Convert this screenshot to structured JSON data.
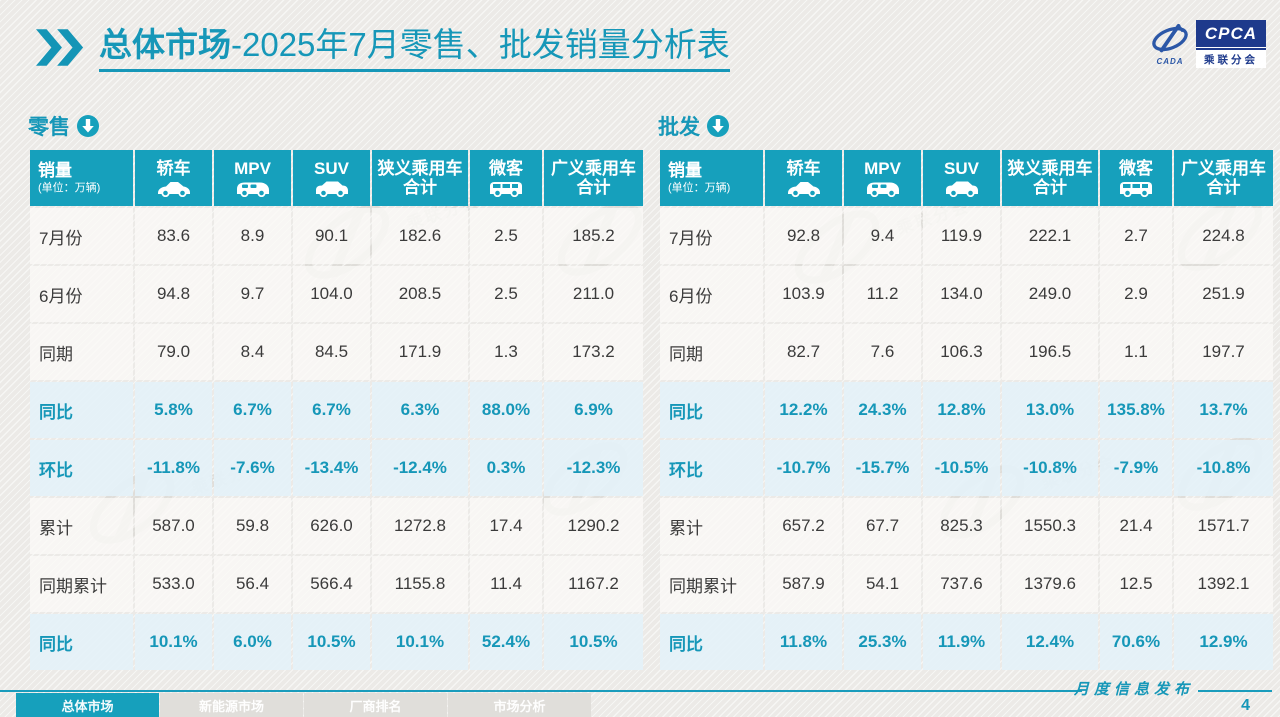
{
  "header": {
    "title_bold": "总体市场",
    "title_rest": "-2025年7月零售、批发销量分析表"
  },
  "logo": {
    "emblem_text": "CADA",
    "acronym": "CPCA",
    "name_cn": "乘联分会"
  },
  "watermark_label": "乘联分会",
  "colors": {
    "teal": "#16A0BC",
    "teal_text": "#1697B8",
    "navy": "#1E3A8C",
    "pct_row_bg": "#E4F1F8"
  },
  "tables": [
    {
      "title": "零售",
      "unit_label": "销量",
      "unit_sub": "(单位：万辆)",
      "columns": [
        {
          "label": "轿车",
          "icon": "sedan"
        },
        {
          "label": "MPV",
          "icon": "mpv"
        },
        {
          "label": "SUV",
          "icon": "suv"
        },
        {
          "label": "狭义乘用车",
          "label2": "合计",
          "icon": null
        },
        {
          "label": "微客",
          "icon": "van"
        },
        {
          "label": "广义乘用车",
          "label2": "合计",
          "icon": null
        }
      ],
      "rows": [
        {
          "label": "7月份",
          "type": "num",
          "values": [
            "83.6",
            "8.9",
            "90.1",
            "182.6",
            "2.5",
            "185.2"
          ]
        },
        {
          "label": "6月份",
          "type": "num",
          "values": [
            "94.8",
            "9.7",
            "104.0",
            "208.5",
            "2.5",
            "211.0"
          ]
        },
        {
          "label": "同期",
          "type": "num",
          "values": [
            "79.0",
            "8.4",
            "84.5",
            "171.9",
            "1.3",
            "173.2"
          ]
        },
        {
          "label": "同比",
          "type": "pct",
          "values": [
            "5.8%",
            "6.7%",
            "6.7%",
            "6.3%",
            "88.0%",
            "6.9%"
          ]
        },
        {
          "label": "环比",
          "type": "pct",
          "values": [
            "-11.8%",
            "-7.6%",
            "-13.4%",
            "-12.4%",
            "0.3%",
            "-12.3%"
          ]
        },
        {
          "label": "累计",
          "type": "num",
          "values": [
            "587.0",
            "59.8",
            "626.0",
            "1272.8",
            "17.4",
            "1290.2"
          ]
        },
        {
          "label": "同期累计",
          "type": "num",
          "values": [
            "533.0",
            "56.4",
            "566.4",
            "1155.8",
            "11.4",
            "1167.2"
          ]
        },
        {
          "label": "同比",
          "type": "pct",
          "values": [
            "10.1%",
            "6.0%",
            "10.5%",
            "10.1%",
            "52.4%",
            "10.5%"
          ]
        }
      ]
    },
    {
      "title": "批发",
      "unit_label": "销量",
      "unit_sub": "(单位：万辆)",
      "columns": [
        {
          "label": "轿车",
          "icon": "sedan"
        },
        {
          "label": "MPV",
          "icon": "mpv"
        },
        {
          "label": "SUV",
          "icon": "suv"
        },
        {
          "label": "狭义乘用车",
          "label2": "合计",
          "icon": null
        },
        {
          "label": "微客",
          "icon": "van"
        },
        {
          "label": "广义乘用车",
          "label2": "合计",
          "icon": null
        }
      ],
      "rows": [
        {
          "label": "7月份",
          "type": "num",
          "values": [
            "92.8",
            "9.4",
            "119.9",
            "222.1",
            "2.7",
            "224.8"
          ]
        },
        {
          "label": "6月份",
          "type": "num",
          "values": [
            "103.9",
            "11.2",
            "134.0",
            "249.0",
            "2.9",
            "251.9"
          ]
        },
        {
          "label": "同期",
          "type": "num",
          "values": [
            "82.7",
            "7.6",
            "106.3",
            "196.5",
            "1.1",
            "197.7"
          ]
        },
        {
          "label": "同比",
          "type": "pct",
          "values": [
            "12.2%",
            "24.3%",
            "12.8%",
            "13.0%",
            "135.8%",
            "13.7%"
          ]
        },
        {
          "label": "环比",
          "type": "pct",
          "values": [
            "-10.7%",
            "-15.7%",
            "-10.5%",
            "-10.8%",
            "-7.9%",
            "-10.8%"
          ]
        },
        {
          "label": "累计",
          "type": "num",
          "values": [
            "657.2",
            "67.7",
            "825.3",
            "1550.3",
            "21.4",
            "1571.7"
          ]
        },
        {
          "label": "同期累计",
          "type": "num",
          "values": [
            "587.9",
            "54.1",
            "737.6",
            "1379.6",
            "12.5",
            "1392.1"
          ]
        },
        {
          "label": "同比",
          "type": "pct",
          "values": [
            "11.8%",
            "25.3%",
            "11.9%",
            "12.4%",
            "70.6%",
            "12.9%"
          ]
        }
      ]
    }
  ],
  "footer": {
    "tabs": [
      {
        "label": "总体市场",
        "active": true
      },
      {
        "label": "新能源市场",
        "active": false
      },
      {
        "label": "厂商排名",
        "active": false
      },
      {
        "label": "市场分析",
        "active": false
      }
    ],
    "publication": "月度信息发布",
    "page": "4"
  }
}
